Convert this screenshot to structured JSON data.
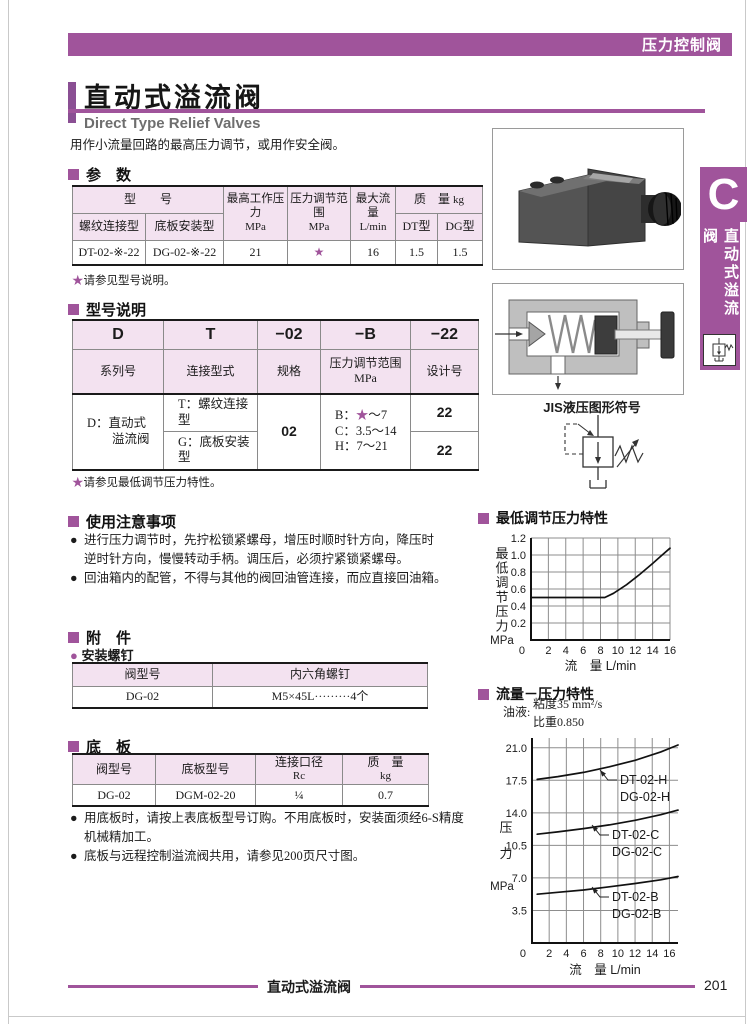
{
  "page": {
    "category": "压力控制阀",
    "title": "直动式溢流阀",
    "subtitle": "Direct Type Relief Valves",
    "description": "用作小流量回路的最高压力调节，或用作安全阀。",
    "footer_label": "直动式溢流阀",
    "page_number": "201"
  },
  "side_tab": {
    "letter": "C",
    "label": "直动式溢流阀"
  },
  "params": {
    "heading": "参　数",
    "head": {
      "model": "型　　号",
      "thread": "螺纹连接型",
      "subplate": "底板安装型",
      "max_pressure": "最高工作压力",
      "max_pressure_unit": "MPa",
      "adj_range": "压力调节范围",
      "adj_range_unit": "MPa",
      "max_flow": "最大流量",
      "max_flow_unit": "L/min",
      "mass": "质　量",
      "mass_unit": "kg",
      "dt": "DT型",
      "dg": "DG型"
    },
    "row": {
      "thread": "DT-02-※-22",
      "subplate": "DG-02-※-22",
      "max_pressure": "21",
      "adj_range": "★",
      "max_flow": "16",
      "dt": "1.5",
      "dg": "1.5"
    },
    "note_star": "★",
    "note_text": "请参见型号说明。"
  },
  "model_code": {
    "heading": "型号说明",
    "codes": {
      "d": "D",
      "t": "T",
      "spec": "−02",
      "range": "−B",
      "design": "−22"
    },
    "labels": {
      "series": "系列号",
      "conn": "连接型式",
      "spec": "规格",
      "range": "压力调节范围\nMPa",
      "design": "设计号"
    },
    "series_name": "D：直动式\n　　溢流阀",
    "conn_t": "T：螺纹连接型",
    "conn_g": "G：底板安装型",
    "spec": "02",
    "range_b_pre": "B：",
    "range_b_star": "★",
    "range_b_suf": "～7",
    "range_c": "C：3.5～14",
    "range_h": "H：7～21",
    "design_t": "22",
    "design_g": "22",
    "note_star": "★",
    "note_text": "请参见最低调节压力特性。"
  },
  "usage": {
    "heading": "使用注意事项",
    "items": [
      "进行压力调节时，先拧松锁紧螺母，增压时顺时针方向，降压时\n逆时针方向，慢慢转动手柄。调压后，必须拧紧锁紧螺母。",
      "回油箱内的配管，不得与其他的阀回油管连接，而应直接回油箱。"
    ]
  },
  "accessory": {
    "heading": "附　件",
    "subheading": "安装螺钉",
    "col_model": "阀型号",
    "col_screw": "内六角螺钉",
    "row_model": "DG-02",
    "row_screw": "M5×45L·········4个"
  },
  "subplate": {
    "heading": "底　板",
    "col_model": "阀型号",
    "col_plate": "底板型号",
    "col_port": "连接口径",
    "col_port_unit": "Rc",
    "col_mass": "质　量",
    "col_mass_unit": "kg",
    "row_model": "DG-02",
    "row_plate": "DGM-02-20",
    "row_port": "¼",
    "row_mass": "0.7",
    "notes": [
      "用底板时，请按上表底板型号订购。不用底板时，安装面须经6-S精度\n机械精加工。",
      "底板与远程控制溢流阀共用，请参见200页尺寸图。"
    ]
  },
  "figures": {
    "jis_caption": "JIS液压图形符号"
  },
  "chart_data": [
    {
      "type": "line",
      "title": "最低调节压力特性",
      "ylabel": "最低调节压力",
      "ylabel_unit": "MPa",
      "xlabel": "流　量  L/min",
      "xlim": [
        0,
        16
      ],
      "ylim": [
        0,
        1.2
      ],
      "xticks": [
        2,
        4,
        6,
        8,
        10,
        12,
        14,
        16
      ],
      "origin_label": "0",
      "yticks": [
        0.2,
        0.4,
        0.6,
        0.8,
        1.0,
        1.2
      ],
      "ytick_labels": [
        "0.2",
        "0.4",
        "0.6",
        "0.8",
        "1.0",
        "1.2"
      ],
      "grid": true,
      "legend": "none",
      "series": [
        {
          "labels": [],
          "points": [
            [
              0,
              0.5
            ],
            [
              7,
              0.5
            ],
            [
              8.5,
              0.5
            ],
            [
              9.5,
              0.55
            ],
            [
              11,
              0.65
            ],
            [
              12.5,
              0.77
            ],
            [
              14,
              0.9
            ],
            [
              15,
              0.99
            ],
            [
              16,
              1.08
            ]
          ]
        }
      ]
    },
    {
      "type": "line",
      "title": "流量－压力特性",
      "oil_label": "油液:",
      "oil_viscosity": "粘度35 mm²/s",
      "oil_gravity": "比重0.850",
      "ylabel": "压力",
      "ylabel_unit": "MPa",
      "xlabel": "流　量  L/min",
      "xlim": [
        0,
        17
      ],
      "ylim": [
        0,
        22.05
      ],
      "xticks": [
        2,
        4,
        6,
        8,
        10,
        12,
        14,
        16
      ],
      "origin_label": "0",
      "yticks": [
        3.5,
        7.0,
        10.5,
        14.0,
        17.5,
        21.0
      ],
      "ytick_labels": [
        "3.5",
        "7.0",
        "10.5",
        "14.0",
        "17.5",
        "21.0"
      ],
      "grid": true,
      "legend": "inline-labels",
      "series": [
        {
          "labels": [
            "DT-02-H",
            "DG-02-H"
          ],
          "points": [
            [
              0.6,
              17.6
            ],
            [
              3,
              17.9
            ],
            [
              6,
              18.35
            ],
            [
              9,
              18.95
            ],
            [
              12,
              19.65
            ],
            [
              15,
              20.55
            ],
            [
              17,
              21.3
            ]
          ]
        },
        {
          "labels": [
            "DT-02-C",
            "DG-02-C"
          ],
          "points": [
            [
              0.6,
              11.7
            ],
            [
              3,
              11.95
            ],
            [
              6,
              12.3
            ],
            [
              9,
              12.7
            ],
            [
              12,
              13.2
            ],
            [
              15,
              13.8
            ],
            [
              17,
              14.3
            ]
          ]
        },
        {
          "labels": [
            "DT-02-B",
            "DG-02-B"
          ],
          "points": [
            [
              0.6,
              5.25
            ],
            [
              3,
              5.45
            ],
            [
              6,
              5.7
            ],
            [
              9,
              6.05
            ],
            [
              12,
              6.4
            ],
            [
              15,
              6.8
            ],
            [
              17,
              7.15
            ]
          ]
        }
      ]
    }
  ],
  "colors": {
    "accent": "#a0549b",
    "table_header_bg": "#f3e2f0",
    "star": "#a0549b"
  }
}
